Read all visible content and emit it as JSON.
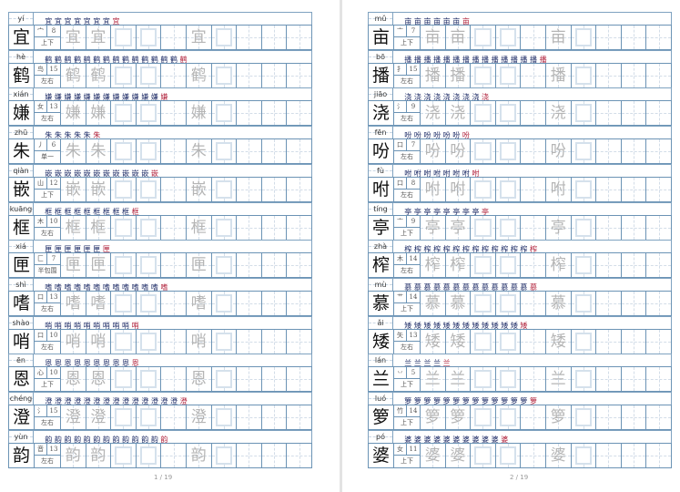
{
  "pages": [
    {
      "footer": "1 / 19",
      "rows": [
        {
          "pinyin": "yí",
          "char": "宜",
          "radical": "宀",
          "strokes": "8",
          "structure": "上下"
        },
        {
          "pinyin": "hè",
          "char": "鹤",
          "radical": "鸟",
          "strokes": "15",
          "structure": "左右"
        },
        {
          "pinyin": "xián",
          "char": "嫌",
          "radical": "女",
          "strokes": "13",
          "structure": "左右"
        },
        {
          "pinyin": "zhū",
          "char": "朱",
          "radical": "丿",
          "strokes": "6",
          "structure": "单一"
        },
        {
          "pinyin": "qiàn",
          "char": "嵌",
          "radical": "山",
          "strokes": "12",
          "structure": "上下"
        },
        {
          "pinyin": "kuāng",
          "char": "框",
          "radical": "木",
          "strokes": "10",
          "structure": "左右"
        },
        {
          "pinyin": "xiá",
          "char": "匣",
          "radical": "匚",
          "strokes": "7",
          "structure": "半包围"
        },
        {
          "pinyin": "shì",
          "char": "嗜",
          "radical": "口",
          "strokes": "13",
          "structure": "左右"
        },
        {
          "pinyin": "shào",
          "char": "哨",
          "radical": "口",
          "strokes": "10",
          "structure": "左右"
        },
        {
          "pinyin": "ēn",
          "char": "恩",
          "radical": "心",
          "strokes": "10",
          "structure": "上下"
        },
        {
          "pinyin": "chéng",
          "char": "澄",
          "radical": "氵",
          "strokes": "15",
          "structure": "左右"
        },
        {
          "pinyin": "yùn",
          "char": "韵",
          "radical": "音",
          "strokes": "13",
          "structure": "左右"
        }
      ]
    },
    {
      "footer": "2 / 19",
      "rows": [
        {
          "pinyin": "mǔ",
          "char": "亩",
          "radical": "亠",
          "strokes": "7",
          "structure": "上下"
        },
        {
          "pinyin": "bō",
          "char": "播",
          "radical": "扌",
          "strokes": "15",
          "structure": "左右"
        },
        {
          "pinyin": "jiāo",
          "char": "浇",
          "radical": "氵",
          "strokes": "9",
          "structure": "左右"
        },
        {
          "pinyin": "fēn",
          "char": "吩",
          "radical": "口",
          "strokes": "7",
          "structure": "左右"
        },
        {
          "pinyin": "fù",
          "char": "咐",
          "radical": "口",
          "strokes": "8",
          "structure": "左右"
        },
        {
          "pinyin": "tíng",
          "char": "亭",
          "radical": "亠",
          "strokes": "9",
          "structure": "上下"
        },
        {
          "pinyin": "zhà",
          "char": "榨",
          "radical": "木",
          "strokes": "14",
          "structure": "左右"
        },
        {
          "pinyin": "mù",
          "char": "慕",
          "radical": "艹",
          "strokes": "14",
          "structure": "上下"
        },
        {
          "pinyin": "ǎi",
          "char": "矮",
          "radical": "矢",
          "strokes": "13",
          "structure": "左右"
        },
        {
          "pinyin": "lán",
          "char": "兰",
          "radical": "丷",
          "strokes": "5",
          "structure": "上下"
        },
        {
          "pinyin": "luó",
          "char": "箩",
          "radical": "竹",
          "strokes": "14",
          "structure": "上下"
        },
        {
          "pinyin": "pó",
          "char": "婆",
          "radical": "女",
          "strokes": "11",
          "structure": "上下"
        }
      ]
    }
  ],
  "cell_pattern": [
    "trace",
    "trace",
    "box",
    "box",
    "empty",
    "trace",
    "box",
    "empty",
    "empty",
    "empty"
  ],
  "colors": {
    "grid": "#6b93b5",
    "stroke_order": "#1d2b66",
    "stroke_highlight": "#b0203a",
    "trace": "#b5b5b5"
  }
}
